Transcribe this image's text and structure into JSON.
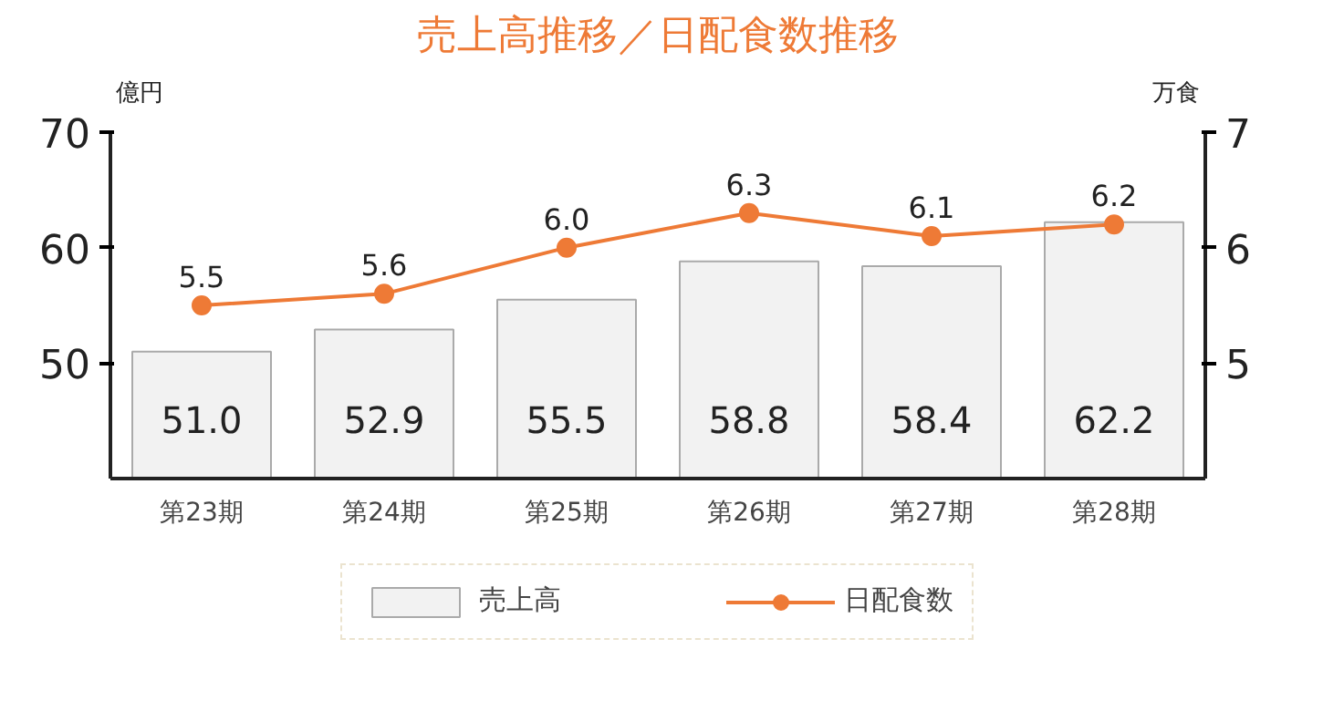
{
  "chart_data": {
    "type": "bar",
    "title": "売上高推移／日配食数推移",
    "ylabel": "億円",
    "y2label": "万食",
    "categories": [
      "第23期",
      "第24期",
      "第25期",
      "第26期",
      "第27期",
      "第28期"
    ],
    "series": [
      {
        "name": "売上高",
        "color": "#f2f2f2",
        "values": [
          51.0,
          52.9,
          55.5,
          58.8,
          58.4,
          62.2
        ],
        "value_labels": [
          "51.0",
          "52.9",
          "55.5",
          "58.8",
          "58.4",
          "62.2"
        ]
      },
      {
        "name": "日配食数",
        "type": "line",
        "axis": "y2",
        "color": "#ee7a36",
        "values": [
          5.5,
          5.6,
          6.0,
          6.3,
          6.1,
          6.2
        ],
        "value_labels": [
          "5.5",
          "5.6",
          "6.0",
          "6.3",
          "6.1",
          "6.2"
        ]
      }
    ],
    "ylim": [
      40,
      70
    ],
    "yticks": [
      50,
      60,
      70
    ],
    "y2lim": [
      4,
      7
    ],
    "y2ticks": [
      5,
      6,
      7
    ],
    "legend": "bottom",
    "marker": "circle",
    "line_style": "solid"
  }
}
